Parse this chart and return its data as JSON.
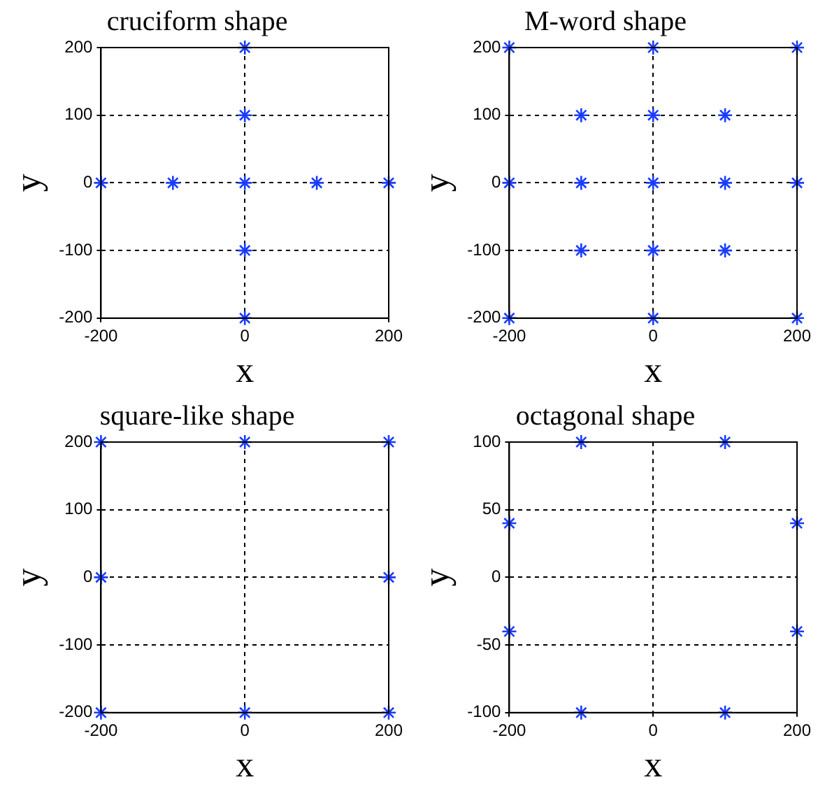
{
  "chart_data": [
    {
      "type": "scatter",
      "title": "cruciform shape",
      "xlabel": "x",
      "ylabel": "y",
      "xlim": [
        -200,
        200
      ],
      "xticks": [
        -200,
        0,
        200
      ],
      "ylim": [
        -200,
        200
      ],
      "yticks": [
        -200,
        -100,
        0,
        100,
        200
      ],
      "grid": true,
      "marker": "cross",
      "line_style": "dashed",
      "series": [
        {
          "color": "#1a3cff",
          "x": [
            0,
            0,
            -200,
            -100,
            0,
            100,
            200,
            0,
            0
          ],
          "values": [
            200,
            100,
            0,
            0,
            0,
            0,
            0,
            -100,
            -200
          ]
        }
      ]
    },
    {
      "type": "scatter",
      "title": "M-word shape",
      "xlabel": "x",
      "ylabel": "y",
      "xlim": [
        -200,
        200
      ],
      "xticks": [
        -200,
        0,
        200
      ],
      "ylim": [
        -200,
        200
      ],
      "yticks": [
        -200,
        -100,
        0,
        100,
        200
      ],
      "grid": true,
      "marker": "cross",
      "line_style": "dashed",
      "series": [
        {
          "color": "#1a3cff",
          "x": [
            -200,
            0,
            200,
            -100,
            0,
            100,
            -200,
            -100,
            0,
            100,
            200,
            -100,
            0,
            100,
            -200,
            0,
            200
          ],
          "values": [
            200,
            200,
            200,
            100,
            100,
            100,
            0,
            0,
            0,
            0,
            0,
            -100,
            -100,
            -100,
            -200,
            -200,
            -200
          ]
        }
      ]
    },
    {
      "type": "scatter",
      "title": "square-like shape",
      "xlabel": "x",
      "ylabel": "y",
      "xlim": [
        -200,
        200
      ],
      "xticks": [
        -200,
        0,
        200
      ],
      "ylim": [
        -200,
        200
      ],
      "yticks": [
        -200,
        -100,
        0,
        100,
        200
      ],
      "grid": true,
      "marker": "cross",
      "line_style": "dashed",
      "series": [
        {
          "color": "#1a3cff",
          "x": [
            -200,
            0,
            200,
            -200,
            200,
            -200,
            0,
            200
          ],
          "values": [
            200,
            200,
            200,
            0,
            0,
            -200,
            -200,
            -200
          ]
        }
      ]
    },
    {
      "type": "scatter",
      "title": "octagonal shape",
      "xlabel": "x",
      "ylabel": "y",
      "xlim": [
        -200,
        200
      ],
      "xticks": [
        -200,
        0,
        200
      ],
      "ylim": [
        -100,
        100
      ],
      "yticks": [
        -100,
        -50,
        0,
        50,
        100
      ],
      "grid": true,
      "marker": "cross",
      "line_style": "dashed",
      "series": [
        {
          "color": "#1a3cff",
          "x": [
            -100,
            100,
            -200,
            200,
            -200,
            200,
            -100,
            100
          ],
          "values": [
            100,
            100,
            40,
            40,
            -40,
            -40,
            -100,
            -100
          ]
        }
      ]
    }
  ]
}
